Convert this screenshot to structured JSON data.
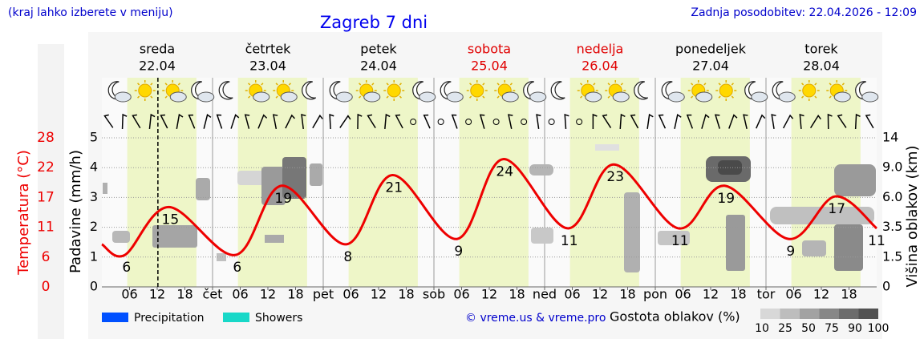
{
  "header": {
    "note": "(kraj lahko izberete v meniju)",
    "updated": "Zadnja posodobitev: 22.04.2026 - 12:09"
  },
  "chart_data": {
    "type": "line",
    "title": "Zagreb 7 dni",
    "y_label": "Padavine (mm/h)",
    "ylim": [
      0,
      5
    ],
    "yticks": [
      0,
      1,
      2,
      3,
      4,
      5
    ],
    "y2_label": "Temperatura (°C)",
    "y2lim": [
      0,
      28
    ],
    "y2ticks": [
      0,
      {
        "value": 5.6,
        "label": "6"
      },
      {
        "value": 11.2,
        "label": "11"
      },
      {
        "value": 16.8,
        "label": "17"
      },
      {
        "value": 22.4,
        "label": "22"
      },
      28
    ],
    "y3_label": "Višina oblakov (km)",
    "y3ticks": [
      0,
      1.5,
      3.5,
      {
        "value": 6,
        "label": "6.0"
      },
      {
        "value": 9,
        "label": "9.0"
      },
      14
    ],
    "xlim": [
      0,
      168
    ],
    "xticks": [
      {
        "value": 6,
        "label": "06"
      },
      {
        "value": 12,
        "label": "12"
      },
      18,
      {
        "value": 24,
        "label": "čet"
      },
      {
        "value": 30,
        "label": "06"
      },
      {
        "value": 36,
        "label": "12"
      },
      {
        "value": 42,
        "label": "18"
      },
      {
        "value": 48,
        "label": "pet"
      },
      {
        "value": 54,
        "label": "06"
      },
      {
        "value": 60,
        "label": "12"
      },
      {
        "value": 66,
        "label": "18"
      },
      {
        "value": 72,
        "label": "sob"
      },
      {
        "value": 78,
        "label": "06"
      },
      {
        "value": 84,
        "label": "12"
      },
      {
        "value": 90,
        "label": "18"
      },
      {
        "value": 96,
        "label": "ned"
      },
      {
        "value": 102,
        "label": "06"
      },
      {
        "value": 108,
        "label": "12"
      },
      {
        "value": 114,
        "label": "18"
      },
      {
        "value": 120,
        "label": "pon"
      },
      {
        "value": 126,
        "label": "06"
      },
      {
        "value": 132,
        "label": "12"
      },
      {
        "value": 138,
        "label": "18"
      },
      {
        "value": 144,
        "label": "tor"
      },
      {
        "value": 150,
        "label": "06"
      },
      {
        "value": 156,
        "label": "12"
      },
      {
        "value": 162,
        "label": "18"
      }
    ],
    "days": [
      {
        "name": "sreda",
        "date": "22.04",
        "color": "#000000"
      },
      {
        "name": "četrtek",
        "date": "23.04",
        "color": "#000000"
      },
      {
        "name": "petek",
        "date": "24.04",
        "color": "#000000"
      },
      {
        "name": "sobota",
        "date": "25.04",
        "color": "#e00000"
      },
      {
        "name": "nedelja",
        "date": "26.04",
        "color": "#e00000"
      },
      {
        "name": "ponedeljek",
        "date": "27.04",
        "color": "#000000"
      },
      {
        "name": "torek",
        "date": "28.04",
        "color": "#000000"
      }
    ],
    "current_time_x": 12.15,
    "x": [
      0,
      5,
      14.5,
      29,
      39,
      53,
      63,
      77,
      87,
      101,
      111,
      125,
      135,
      149,
      159,
      168
    ],
    "series": [
      {
        "color": "#ee0000",
        "axis": "y2",
        "values": [
          8,
          6,
          15,
          6,
          19,
          8,
          21,
          9,
          24,
          11,
          23,
          11,
          19,
          9,
          17,
          11
        ]
      }
    ],
    "legend": [
      {
        "name": "Precipitation",
        "color": "#0050ff"
      },
      {
        "name": "Showers",
        "color": "#18d8c8"
      }
    ],
    "credit": "© vreme.us & vreme.pro",
    "cloud_legend": {
      "title": "Gostota oblakov (%)",
      "levels": [
        10,
        25,
        50,
        75,
        90,
        100
      ]
    }
  }
}
